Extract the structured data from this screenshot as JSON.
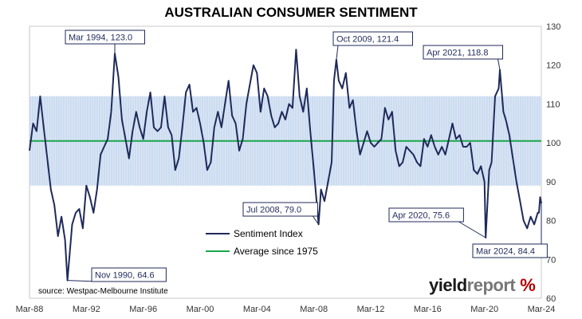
{
  "chart_data": {
    "type": "line",
    "title": "AUSTRALIAN CONSUMER SENTIMENT",
    "xlabel": "",
    "ylabel": "",
    "x_ticks": [
      "Mar-88",
      "Mar-92",
      "Mar-96",
      "Mar-00",
      "Mar-04",
      "Mar-08",
      "Mar-12",
      "Mar-16",
      "Mar-20",
      "Mar-24"
    ],
    "y_ticks": [
      60,
      70,
      80,
      90,
      100,
      110,
      120,
      130
    ],
    "ylim": [
      60,
      130
    ],
    "xlim": [
      "1988-03",
      "2024-03"
    ],
    "band": {
      "low": 89,
      "high": 112
    },
    "grid": false,
    "legend_position": "bottom-left",
    "series": [
      {
        "name": "Sentiment Index",
        "color": "#1f2a5a",
        "points": [
          [
            "1988-03",
            98
          ],
          [
            "1988-06",
            105
          ],
          [
            "1988-09",
            103
          ],
          [
            "1988-12",
            112
          ],
          [
            "1989-03",
            104
          ],
          [
            "1989-06",
            96
          ],
          [
            "1989-09",
            88
          ],
          [
            "1989-12",
            84
          ],
          [
            "1990-03",
            76
          ],
          [
            "1990-06",
            81
          ],
          [
            "1990-09",
            75
          ],
          [
            "1990-11",
            64.6
          ],
          [
            "1991-03",
            79
          ],
          [
            "1991-06",
            82
          ],
          [
            "1991-09",
            83
          ],
          [
            "1991-12",
            78
          ],
          [
            "1992-03",
            89
          ],
          [
            "1992-06",
            86
          ],
          [
            "1992-09",
            82
          ],
          [
            "1992-12",
            88
          ],
          [
            "1993-03",
            97
          ],
          [
            "1993-06",
            99
          ],
          [
            "1993-09",
            101
          ],
          [
            "1993-12",
            108
          ],
          [
            "1994-03",
            123.0
          ],
          [
            "1994-06",
            117
          ],
          [
            "1994-09",
            106
          ],
          [
            "1994-12",
            101
          ],
          [
            "1995-03",
            96
          ],
          [
            "1995-06",
            103
          ],
          [
            "1995-09",
            108
          ],
          [
            "1995-12",
            104
          ],
          [
            "1996-03",
            101
          ],
          [
            "1996-06",
            108
          ],
          [
            "1996-09",
            113
          ],
          [
            "1996-12",
            104
          ],
          [
            "1997-03",
            103
          ],
          [
            "1997-06",
            104
          ],
          [
            "1997-09",
            112
          ],
          [
            "1997-12",
            104
          ],
          [
            "1998-03",
            102
          ],
          [
            "1998-06",
            93
          ],
          [
            "1998-09",
            96
          ],
          [
            "1998-12",
            104
          ],
          [
            "1999-03",
            113
          ],
          [
            "1999-06",
            115
          ],
          [
            "1999-09",
            108
          ],
          [
            "1999-12",
            109
          ],
          [
            "2000-03",
            105
          ],
          [
            "2000-06",
            100
          ],
          [
            "2000-09",
            93
          ],
          [
            "2000-12",
            95
          ],
          [
            "2001-03",
            104
          ],
          [
            "2001-06",
            108
          ],
          [
            "2001-09",
            104
          ],
          [
            "2001-12",
            110
          ],
          [
            "2002-03",
            116
          ],
          [
            "2002-06",
            107
          ],
          [
            "2002-09",
            105
          ],
          [
            "2002-12",
            98
          ],
          [
            "2003-03",
            101
          ],
          [
            "2003-06",
            110
          ],
          [
            "2003-09",
            115
          ],
          [
            "2003-12",
            120
          ],
          [
            "2004-03",
            118
          ],
          [
            "2004-06",
            108
          ],
          [
            "2004-09",
            114
          ],
          [
            "2004-12",
            112
          ],
          [
            "2005-03",
            107
          ],
          [
            "2005-06",
            104
          ],
          [
            "2005-09",
            105
          ],
          [
            "2005-12",
            108
          ],
          [
            "2006-03",
            106
          ],
          [
            "2006-06",
            110
          ],
          [
            "2006-09",
            109
          ],
          [
            "2006-12",
            124
          ],
          [
            "2007-03",
            112
          ],
          [
            "2007-06",
            108
          ],
          [
            "2007-09",
            114
          ],
          [
            "2007-12",
            103
          ],
          [
            "2008-03",
            93
          ],
          [
            "2008-07",
            79.0
          ],
          [
            "2008-09",
            88
          ],
          [
            "2008-12",
            85
          ],
          [
            "2009-03",
            90
          ],
          [
            "2009-06",
            95
          ],
          [
            "2009-08",
            116
          ],
          [
            "2009-10",
            121.4
          ],
          [
            "2009-12",
            116
          ],
          [
            "2010-03",
            114
          ],
          [
            "2010-06",
            118
          ],
          [
            "2010-09",
            109
          ],
          [
            "2010-12",
            111
          ],
          [
            "2011-03",
            103
          ],
          [
            "2011-06",
            97
          ],
          [
            "2011-09",
            100
          ],
          [
            "2011-12",
            103
          ],
          [
            "2012-03",
            100
          ],
          [
            "2012-06",
            99
          ],
          [
            "2012-09",
            100
          ],
          [
            "2012-12",
            101
          ],
          [
            "2013-03",
            109
          ],
          [
            "2013-06",
            106
          ],
          [
            "2013-09",
            108
          ],
          [
            "2013-12",
            98
          ],
          [
            "2014-03",
            94
          ],
          [
            "2014-06",
            95
          ],
          [
            "2014-09",
            99
          ],
          [
            "2014-12",
            98
          ],
          [
            "2015-03",
            97
          ],
          [
            "2015-06",
            95
          ],
          [
            "2015-09",
            94
          ],
          [
            "2015-12",
            101
          ],
          [
            "2016-03",
            99
          ],
          [
            "2016-06",
            102
          ],
          [
            "2016-09",
            99
          ],
          [
            "2016-12",
            97
          ],
          [
            "2017-03",
            99
          ],
          [
            "2017-06",
            97
          ],
          [
            "2017-09",
            101
          ],
          [
            "2017-12",
            105
          ],
          [
            "2018-03",
            101
          ],
          [
            "2018-06",
            102
          ],
          [
            "2018-09",
            99
          ],
          [
            "2018-12",
            99
          ],
          [
            "2019-03",
            100
          ],
          [
            "2019-06",
            93
          ],
          [
            "2019-09",
            92
          ],
          [
            "2019-12",
            94
          ],
          [
            "2020-03",
            90
          ],
          [
            "2020-04",
            75.6
          ],
          [
            "2020-07",
            93
          ],
          [
            "2020-09",
            95
          ],
          [
            "2020-12",
            112
          ],
          [
            "2021-03",
            114
          ],
          [
            "2021-04",
            118.8
          ],
          [
            "2021-07",
            108
          ],
          [
            "2021-09",
            106
          ],
          [
            "2021-12",
            102
          ],
          [
            "2022-03",
            96
          ],
          [
            "2022-06",
            90
          ],
          [
            "2022-09",
            85
          ],
          [
            "2022-12",
            80
          ],
          [
            "2023-03",
            78
          ],
          [
            "2023-06",
            81
          ],
          [
            "2023-09",
            79
          ],
          [
            "2023-12",
            82
          ],
          [
            "2024-01",
            82
          ],
          [
            "2024-02",
            86
          ],
          [
            "2024-03",
            84.4
          ]
        ]
      },
      {
        "name": "Average since 1975",
        "color": "#1aa64a",
        "constant": 100.5
      }
    ],
    "annotations": [
      {
        "text": "Mar 1994, 123.0",
        "x": "1994-03",
        "y": 123.0
      },
      {
        "text": "Oct 2009, 121.4",
        "x": "2009-10",
        "y": 121.4
      },
      {
        "text": "Apr 2021, 118.8",
        "x": "2021-04",
        "y": 118.8
      },
      {
        "text": "Jul 2008, 79.0",
        "x": "2008-07",
        "y": 79.0
      },
      {
        "text": "Apr 2020, 75.6",
        "x": "2020-04",
        "y": 75.6
      },
      {
        "text": "Nov 1990, 64.6",
        "x": "1990-11",
        "y": 64.6
      },
      {
        "text": "Mar 2024, 84.4",
        "x": "2024-03",
        "y": 84.4
      }
    ],
    "source": "source: Westpac-Melbourne Institute"
  },
  "branding": {
    "yield": "yield",
    "report": "report",
    "pct": "%"
  }
}
